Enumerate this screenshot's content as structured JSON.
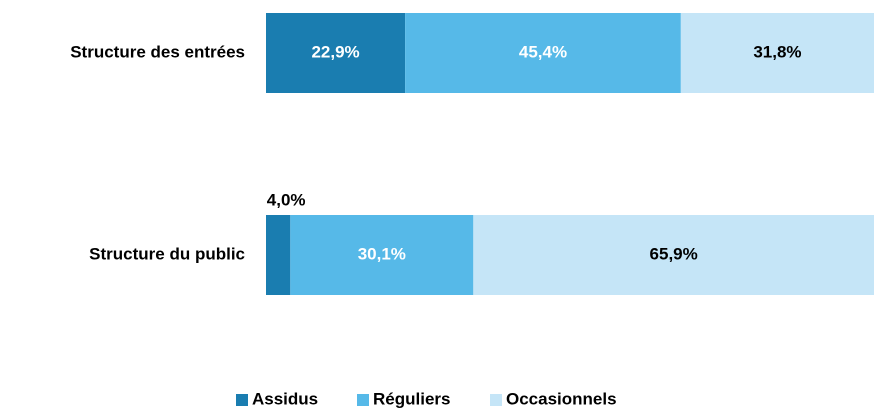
{
  "chart_data": {
    "type": "stacked-bar-horizontal",
    "categories": [
      "Structure des entrées",
      "Structure du public"
    ],
    "series": [
      {
        "name": "Assidus",
        "color": "#1a7db0",
        "values": [
          22.9,
          4.0
        ],
        "value_labels": [
          "22,9%",
          "4,0%"
        ]
      },
      {
        "name": "Réguliers",
        "color": "#56b9e8",
        "values": [
          45.4,
          30.1
        ],
        "value_labels": [
          "45,4%",
          "30,1%"
        ]
      },
      {
        "name": "Occasionnels",
        "color": "#c5e5f7",
        "values": [
          31.8,
          65.9
        ],
        "value_labels": [
          "31,8%",
          "65,9%"
        ]
      }
    ],
    "legend": "bottom"
  }
}
